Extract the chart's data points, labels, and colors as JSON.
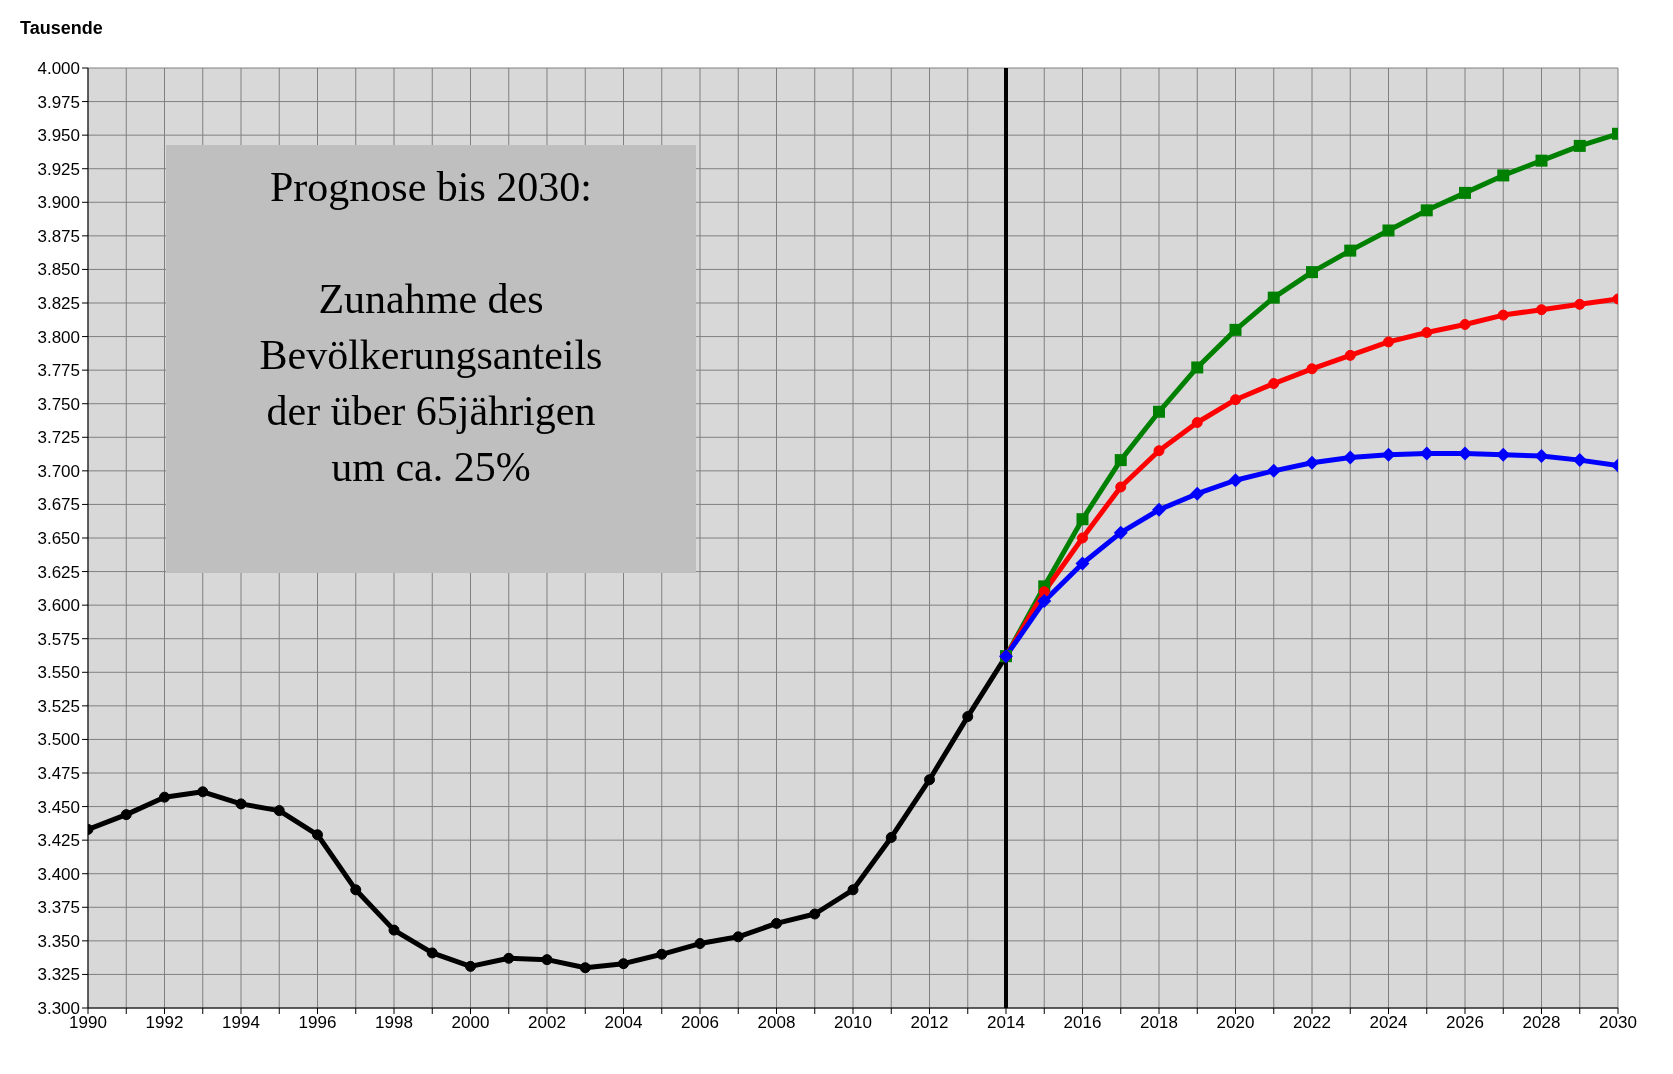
{
  "chart_data": {
    "type": "line",
    "ylabel": "Tausende",
    "annotations": [
      "Prognose bis 2030:\n\nZunahme des\nBevölkerungsanteils\nder über 65jährigen\num ca. 25%"
    ],
    "series": [
      {
        "color": "#000000",
        "marker": "circle",
        "x": [
          1990,
          1991,
          1992,
          1993,
          1994,
          1995,
          1996,
          1997,
          1998,
          1999,
          2000,
          2001,
          2002,
          2003,
          2004,
          2005,
          2006,
          2007,
          2008,
          2009,
          2010,
          2011,
          2012,
          2013,
          2014
        ],
        "values": [
          3433,
          3444,
          3457,
          3461,
          3452,
          3447,
          3429,
          3388,
          3358,
          3341,
          3331,
          3337,
          3336,
          3330,
          3333,
          3340,
          3348,
          3353,
          3363,
          3370,
          3388,
          3427,
          3470,
          3517,
          3562
        ]
      },
      {
        "color": "#008000",
        "marker": "square",
        "x": [
          2014,
          2015,
          2016,
          2017,
          2018,
          2019,
          2020,
          2021,
          2022,
          2023,
          2024,
          2025,
          2026,
          2027,
          2028,
          2029,
          2030
        ],
        "values": [
          3562,
          3614,
          3664,
          3708,
          3744,
          3777,
          3805,
          3829,
          3848,
          3864,
          3879,
          3894,
          3907,
          3920,
          3931,
          3942,
          3951
        ]
      },
      {
        "color": "#ff0000",
        "marker": "circle",
        "x": [
          2014,
          2015,
          2016,
          2017,
          2018,
          2019,
          2020,
          2021,
          2022,
          2023,
          2024,
          2025,
          2026,
          2027,
          2028,
          2029,
          2030
        ],
        "values": [
          3562,
          3610,
          3650,
          3688,
          3715,
          3736,
          3753,
          3765,
          3776,
          3786,
          3796,
          3803,
          3809,
          3816,
          3820,
          3824,
          3828
        ]
      },
      {
        "color": "#0000ff",
        "marker": "diamond",
        "x": [
          2014,
          2015,
          2016,
          2017,
          2018,
          2019,
          2020,
          2021,
          2022,
          2023,
          2024,
          2025,
          2026,
          2027,
          2028,
          2029,
          2030
        ],
        "values": [
          3562,
          3603,
          3631,
          3654,
          3671,
          3683,
          3693,
          3700,
          3706,
          3710,
          3712,
          3713,
          3713,
          3712,
          3711,
          3708,
          3704
        ]
      }
    ],
    "xlim": [
      1990,
      2030
    ],
    "xticks": [
      1990,
      {
        "value": 1991,
        "label": null
      },
      1992,
      {
        "value": 1993,
        "label": null
      },
      1994,
      {
        "value": 1995,
        "label": null
      },
      1996,
      {
        "value": 1997,
        "label": null
      },
      1998,
      {
        "value": 1999,
        "label": null
      },
      2000,
      {
        "value": 2001,
        "label": null
      },
      2002,
      {
        "value": 2003,
        "label": null
      },
      2004,
      {
        "value": 2005,
        "label": null
      },
      2006,
      {
        "value": 2007,
        "label": null
      },
      2008,
      {
        "value": 2009,
        "label": null
      },
      2010,
      {
        "value": 2011,
        "label": null
      },
      2012,
      {
        "value": 2013,
        "label": null
      },
      2014,
      {
        "value": 2015,
        "label": null
      },
      2016,
      {
        "value": 2017,
        "label": null
      },
      2018,
      {
        "value": 2019,
        "label": null
      },
      2020,
      {
        "value": 2021,
        "label": null
      },
      2022,
      {
        "value": 2023,
        "label": null
      },
      2024,
      {
        "value": 2025,
        "label": null
      },
      2026,
      {
        "value": 2027,
        "label": null
      },
      2028,
      {
        "value": 2029,
        "label": null
      },
      2030
    ],
    "ylim": [
      3300,
      4000
    ],
    "yticks": [
      {
        "value": 3300,
        "label": "3.300"
      },
      {
        "value": 3325,
        "label": "3.325"
      },
      {
        "value": 3350,
        "label": "3.350"
      },
      {
        "value": 3375,
        "label": "3.375"
      },
      {
        "value": 3400,
        "label": "3.400"
      },
      {
        "value": 3425,
        "label": "3.425"
      },
      {
        "value": 3450,
        "label": "3.450"
      },
      {
        "value": 3475,
        "label": "3.475"
      },
      {
        "value": 3500,
        "label": "3.500"
      },
      {
        "value": 3525,
        "label": "3.525"
      },
      {
        "value": 3550,
        "label": "3.550"
      },
      {
        "value": 3575,
        "label": "3.575"
      },
      {
        "value": 3600,
        "label": "3.600"
      },
      {
        "value": 3625,
        "label": "3.625"
      },
      {
        "value": 3650,
        "label": "3.650"
      },
      {
        "value": 3675,
        "label": "3.675"
      },
      {
        "value": 3700,
        "label": "3.700"
      },
      {
        "value": 3725,
        "label": "3.725"
      },
      {
        "value": 3750,
        "label": "3.750"
      },
      {
        "value": 3775,
        "label": "3.775"
      },
      {
        "value": 3800,
        "label": "3.800"
      },
      {
        "value": 3825,
        "label": "3.825"
      },
      {
        "value": 3850,
        "label": "3.850"
      },
      {
        "value": 3875,
        "label": "3.875"
      },
      {
        "value": 3900,
        "label": "3.900"
      },
      {
        "value": 3925,
        "label": "3.925"
      },
      {
        "value": 3950,
        "label": "3.950"
      },
      {
        "value": 3975,
        "label": "3.975"
      },
      {
        "value": 4000,
        "label": "4.000"
      }
    ],
    "ref_lines": [
      {
        "axis": "x",
        "value": 2014,
        "color": "#000000"
      }
    ],
    "grid": true
  }
}
